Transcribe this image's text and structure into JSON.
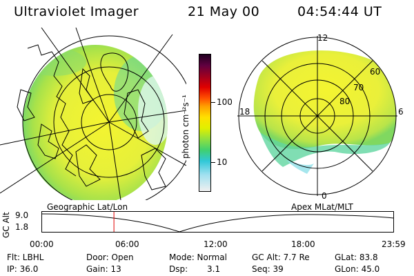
{
  "header": {
    "title": "Ultraviolet Imager",
    "date": "21 May 00",
    "time": "04:54:44 UT"
  },
  "colorbar": {
    "unit_label": "photon cm⁻²s⁻¹",
    "ticks": [
      "100",
      "10"
    ]
  },
  "polar_plot": {
    "lat_labels": [
      "60",
      "70",
      "80"
    ],
    "mlt_labels": [
      "12",
      "18",
      "6",
      "0"
    ]
  },
  "timeline": {
    "left_label": "Geographic Lat/Lon",
    "right_label": "Apex MLat/MLT",
    "axis_title": "GC Alt",
    "y_ticks": [
      "9.0",
      "1.8"
    ],
    "x_ticks": [
      "00:00",
      "06:00",
      "12:00",
      "18:00",
      "23:59"
    ],
    "current_time_hours": 4.91
  },
  "status": {
    "filter": "Flt: LBHL",
    "ip": "IP: 36.0",
    "door": "Door: Open",
    "gain": "Gain: 13",
    "mode": "Mode: Normal",
    "dsp_label": "Dsp:",
    "dsp_value": "3.1",
    "gc_alt": "GC Alt: 7.7 Re",
    "seq": "Seq: 39",
    "glat": "GLat: 83.8",
    "glon": "GLon: 45.0"
  },
  "colors": {
    "marker": "#e00000",
    "line": "#000000"
  }
}
